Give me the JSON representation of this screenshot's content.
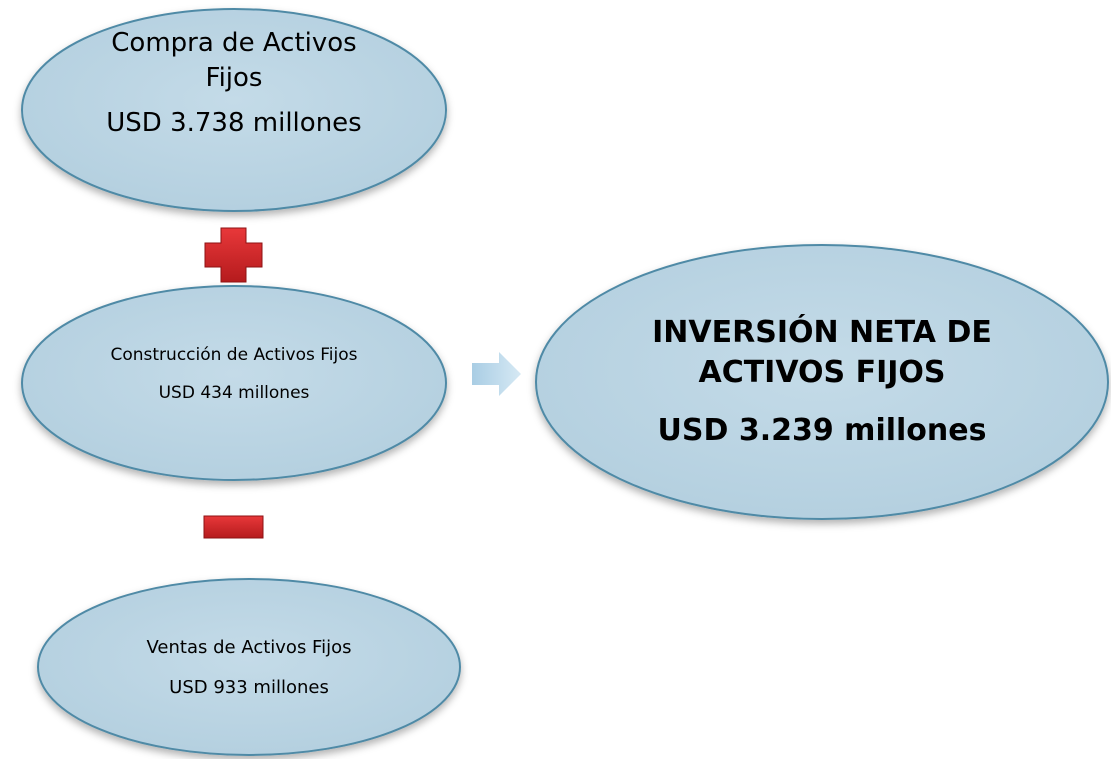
{
  "nodes": [
    {
      "label": "Compra de Activos Fijos",
      "amount": "USD 3.738 millones"
    },
    {
      "label": "Construcción de Activos Fijos",
      "amount": "USD 434 millones"
    },
    {
      "label": "Ventas de Activos Fijos",
      "amount": "USD 933 millones"
    },
    {
      "label": "INVERSIÓN NETA DE ACTIVOS FIJOS",
      "amount": "USD 3.239 millones"
    }
  ]
}
